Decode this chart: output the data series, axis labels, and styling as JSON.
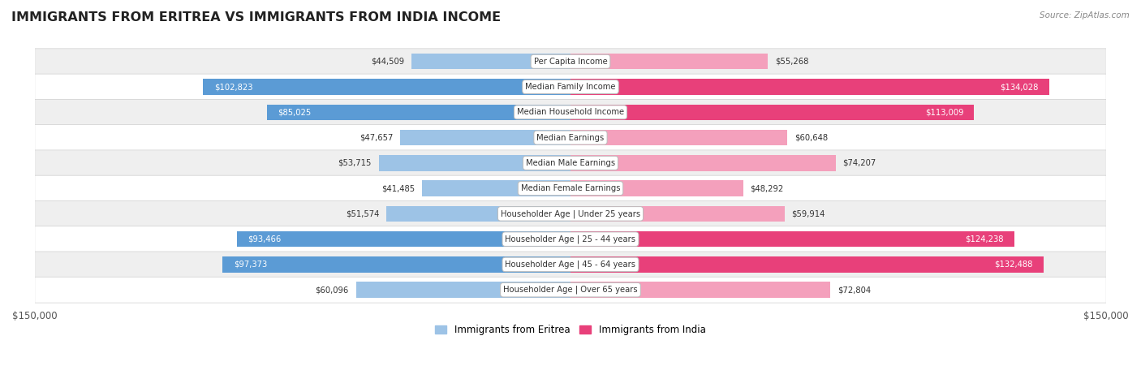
{
  "title": "IMMIGRANTS FROM ERITREA VS IMMIGRANTS FROM INDIA INCOME",
  "source": "Source: ZipAtlas.com",
  "categories": [
    "Per Capita Income",
    "Median Family Income",
    "Median Household Income",
    "Median Earnings",
    "Median Male Earnings",
    "Median Female Earnings",
    "Householder Age | Under 25 years",
    "Householder Age | 25 - 44 years",
    "Householder Age | 45 - 64 years",
    "Householder Age | Over 65 years"
  ],
  "eritrea_values": [
    44509,
    102823,
    85025,
    47657,
    53715,
    41485,
    51574,
    93466,
    97373,
    60096
  ],
  "india_values": [
    55268,
    134028,
    113009,
    60648,
    74207,
    48292,
    59914,
    124238,
    132488,
    72804
  ],
  "eritrea_labels": [
    "$44,509",
    "$102,823",
    "$85,025",
    "$47,657",
    "$53,715",
    "$41,485",
    "$51,574",
    "$93,466",
    "$97,373",
    "$60,096"
  ],
  "india_labels": [
    "$55,268",
    "$134,028",
    "$113,009",
    "$60,648",
    "$74,207",
    "$48,292",
    "$59,914",
    "$124,238",
    "$132,488",
    "$72,804"
  ],
  "eritrea_color_high": "#5b9bd5",
  "eritrea_color_low": "#9dc3e6",
  "india_color_high": "#e8407a",
  "india_color_low": "#f4a0bc",
  "max_val": 150000,
  "background_row_light": "#efefef",
  "background_row_white": "#ffffff",
  "legend_eritrea_color": "#9dc3e6",
  "legend_india_color": "#e8407a",
  "high_thresh": 80000
}
